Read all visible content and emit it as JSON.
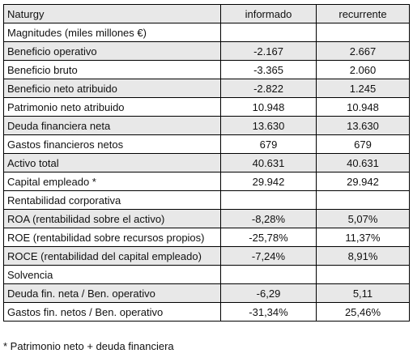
{
  "table": {
    "header": [
      "Naturgy",
      "informado",
      "recurrente"
    ],
    "rows": [
      [
        "Magnitudes (miles millones €)"
      ],
      [
        "Beneficio operativo",
        "-2.167",
        "2.667"
      ],
      [
        "Beneficio bruto",
        "-3.365",
        "2.060"
      ],
      [
        "Beneficio neto atribuido",
        "-2.822",
        "1.245"
      ],
      [
        "Patrimonio neto atribuido",
        "10.948",
        "10.948"
      ],
      [
        "Deuda financiera neta",
        "13.630",
        "13.630"
      ],
      [
        "Gastos financieros netos",
        "679",
        "679"
      ],
      [
        "Activo total",
        "40.631",
        "40.631"
      ],
      [
        "Capital empleado *",
        "29.942",
        "29.942"
      ],
      [
        "Rentabilidad corporativa"
      ],
      [
        "ROA (rentabilidad sobre el activo)",
        "-8,28%",
        "5,07%"
      ],
      [
        "ROE (rentabilidad sobre recursos propios)",
        "-25,78%",
        "11,37%"
      ],
      [
        "ROCE (rentabilidad del capital empleado)",
        "-7,24%",
        "8,91%"
      ],
      [
        "Solvencia"
      ],
      [
        "Deuda fin. neta / Ben. operativo",
        "-6,29",
        "5,11"
      ],
      [
        "Gastos fin. netos / Ben. operativo",
        "-31,34%",
        "25,46%"
      ]
    ]
  },
  "footnote": "* Patrimonio neto + deuda financiera"
}
